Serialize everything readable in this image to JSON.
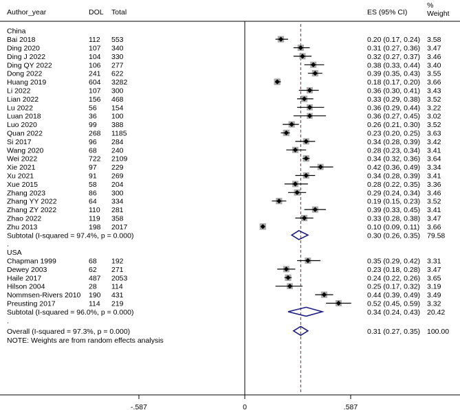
{
  "chart_data": {
    "type": "forest",
    "headers": {
      "study": "Author_year",
      "dol": "DOL",
      "total": "Total",
      "es": "ES (95% CI)",
      "weight_top": "%",
      "weight": "Weight"
    },
    "x_axis": {
      "min": -0.587,
      "max": 0.587,
      "ticks": [
        "-.587",
        "0",
        ".587"
      ],
      "tick_values": [
        -0.587,
        0,
        0.587
      ]
    },
    "overall_es": 0.31,
    "groups": [
      {
        "name": "China",
        "studies": [
          {
            "study": "Bai 2018",
            "dol": "112",
            "total": "553",
            "es": 0.2,
            "lo": 0.17,
            "hi": 0.24,
            "es_text": "0.20 (0.17, 0.24)",
            "weight": "3.58"
          },
          {
            "study": "Ding 2020",
            "dol": "107",
            "total": "340",
            "es": 0.31,
            "lo": 0.27,
            "hi": 0.36,
            "es_text": "0.31 (0.27, 0.36)",
            "weight": "3.47"
          },
          {
            "study": "Ding J 2022",
            "dol": "104",
            "total": "330",
            "es": 0.32,
            "lo": 0.27,
            "hi": 0.37,
            "es_text": "0.32 (0.27, 0.37)",
            "weight": "3.46"
          },
          {
            "study": "Ding QY 2022",
            "dol": "106",
            "total": "277",
            "es": 0.38,
            "lo": 0.33,
            "hi": 0.44,
            "es_text": "0.38 (0.33, 0.44)",
            "weight": "3.40"
          },
          {
            "study": "Dong 2022",
            "dol": "241",
            "total": "622",
            "es": 0.39,
            "lo": 0.35,
            "hi": 0.43,
            "es_text": "0.39 (0.35, 0.43)",
            "weight": "3.55"
          },
          {
            "study": "Huang 2019",
            "dol": "604",
            "total": "3282",
            "es": 0.18,
            "lo": 0.17,
            "hi": 0.2,
            "es_text": "0.18 (0.17, 0.20)",
            "weight": "3.66"
          },
          {
            "study": "Li 2022",
            "dol": "107",
            "total": "300",
            "es": 0.36,
            "lo": 0.3,
            "hi": 0.41,
            "es_text": "0.36 (0.30, 0.41)",
            "weight": "3.43"
          },
          {
            "study": "Lian 2022",
            "dol": "156",
            "total": "468",
            "es": 0.33,
            "lo": 0.29,
            "hi": 0.38,
            "es_text": "0.33 (0.29, 0.38)",
            "weight": "3.52"
          },
          {
            "study": "Lu 2022",
            "dol": "56",
            "total": "154",
            "es": 0.36,
            "lo": 0.29,
            "hi": 0.44,
            "es_text": "0.36 (0.29, 0.44)",
            "weight": "3.22"
          },
          {
            "study": "Luan 2018",
            "dol": "36",
            "total": "100",
            "es": 0.36,
            "lo": 0.27,
            "hi": 0.45,
            "es_text": "0.36 (0.27, 0.45)",
            "weight": "3.02"
          },
          {
            "study": "Luo 2020",
            "dol": "99",
            "total": "388",
            "es": 0.26,
            "lo": 0.21,
            "hi": 0.3,
            "es_text": "0.26 (0.21, 0.30)",
            "weight": "3.52"
          },
          {
            "study": "Quan 2022",
            "dol": "268",
            "total": "1185",
            "es": 0.23,
            "lo": 0.2,
            "hi": 0.25,
            "es_text": "0.23 (0.20, 0.25)",
            "weight": "3.63"
          },
          {
            "study": "Si 2017",
            "dol": "96",
            "total": "284",
            "es": 0.34,
            "lo": 0.28,
            "hi": 0.39,
            "es_text": "0.34 (0.28, 0.39)",
            "weight": "3.42"
          },
          {
            "study": "Wang 2020",
            "dol": "68",
            "total": "240",
            "es": 0.28,
            "lo": 0.23,
            "hi": 0.34,
            "es_text": "0.28 (0.23, 0.34)",
            "weight": "3.41"
          },
          {
            "study": "Wei 2022",
            "dol": "722",
            "total": "2109",
            "es": 0.34,
            "lo": 0.32,
            "hi": 0.36,
            "es_text": "0.34 (0.32, 0.36)",
            "weight": "3.64"
          },
          {
            "study": "Xie 2021",
            "dol": "97",
            "total": "229",
            "es": 0.42,
            "lo": 0.36,
            "hi": 0.49,
            "es_text": "0.42 (0.36, 0.49)",
            "weight": "3.34"
          },
          {
            "study": "Xu 2021",
            "dol": "91",
            "total": "269",
            "es": 0.34,
            "lo": 0.28,
            "hi": 0.39,
            "es_text": "0.34 (0.28, 0.39)",
            "weight": "3.41"
          },
          {
            "study": "Xue 2015",
            "dol": "58",
            "total": "204",
            "es": 0.28,
            "lo": 0.22,
            "hi": 0.35,
            "es_text": "0.28 (0.22, 0.35)",
            "weight": "3.36"
          },
          {
            "study": "Zhang 2023",
            "dol": "86",
            "total": "300",
            "es": 0.29,
            "lo": 0.24,
            "hi": 0.34,
            "es_text": "0.29 (0.24, 0.34)",
            "weight": "3.46"
          },
          {
            "study": "Zhang YY 2022",
            "dol": "64",
            "total": "334",
            "es": 0.19,
            "lo": 0.15,
            "hi": 0.23,
            "es_text": "0.19 (0.15, 0.23)",
            "weight": "3.52"
          },
          {
            "study": "Zhang ZY 2022",
            "dol": "110",
            "total": "281",
            "es": 0.39,
            "lo": 0.33,
            "hi": 0.45,
            "es_text": "0.39 (0.33, 0.45)",
            "weight": "3.41"
          },
          {
            "study": "Zhao 2022",
            "dol": "119",
            "total": "358",
            "es": 0.33,
            "lo": 0.28,
            "hi": 0.38,
            "es_text": "0.33 (0.28, 0.38)",
            "weight": "3.47"
          },
          {
            "study": "Zhu 2013",
            "dol": "198",
            "total": "2017",
            "es": 0.1,
            "lo": 0.09,
            "hi": 0.11,
            "es_text": "0.10 (0.09, 0.11)",
            "weight": "3.66"
          }
        ],
        "subtotal": {
          "label": "Subtotal  (I-squared = 97.4%, p = 0.000)",
          "es": 0.3,
          "lo": 0.26,
          "hi": 0.35,
          "es_text": "0.30 (0.26, 0.35)",
          "weight": "79.58"
        }
      },
      {
        "name": "USA",
        "studies": [
          {
            "study": "Chapman 1999",
            "dol": "68",
            "total": "192",
            "es": 0.35,
            "lo": 0.29,
            "hi": 0.42,
            "es_text": "0.35 (0.29, 0.42)",
            "weight": "3.31"
          },
          {
            "study": "Dewey 2003",
            "dol": "62",
            "total": "271",
            "es": 0.23,
            "lo": 0.18,
            "hi": 0.28,
            "es_text": "0.23 (0.18, 0.28)",
            "weight": "3.47"
          },
          {
            "study": "Haile 2017",
            "dol": "487",
            "total": "2053",
            "es": 0.24,
            "lo": 0.22,
            "hi": 0.26,
            "es_text": "0.24 (0.22, 0.26)",
            "weight": "3.65"
          },
          {
            "study": "Hilson 2004",
            "dol": "28",
            "total": "114",
            "es": 0.25,
            "lo": 0.17,
            "hi": 0.32,
            "es_text": "0.25 (0.17, 0.32)",
            "weight": "3.19"
          },
          {
            "study": "Nommsen-Rivers 2010",
            "dol": "190",
            "total": "431",
            "es": 0.44,
            "lo": 0.39,
            "hi": 0.49,
            "es_text": "0.44 (0.39, 0.49)",
            "weight": "3.49"
          },
          {
            "study": "Preusting 2017",
            "dol": "114",
            "total": "219",
            "es": 0.52,
            "lo": 0.45,
            "hi": 0.59,
            "es_text": "0.52 (0.45, 0.59)",
            "weight": "3.32"
          }
        ],
        "subtotal": {
          "label": "Subtotal  (I-squared = 96.0%, p = 0.000)",
          "es": 0.34,
          "lo": 0.24,
          "hi": 0.43,
          "es_text": "0.34 (0.24, 0.43)",
          "weight": "20.42"
        }
      }
    ],
    "separator": ".",
    "overall": {
      "label": "Overall  (I-squared = 97.3%, p = 0.000)",
      "es": 0.31,
      "lo": 0.27,
      "hi": 0.35,
      "es_text": "0.31 (0.27, 0.35)",
      "weight": "100.00"
    },
    "note": "NOTE: Weights are from random effects analysis"
  },
  "colors": {
    "text": "#000000",
    "box": "#a9a9a9",
    "point": "#000000",
    "ci": "#000000",
    "diamond": "#1a1a80",
    "overall_line": "#8b1a1a",
    "zero_line": "#000000"
  }
}
